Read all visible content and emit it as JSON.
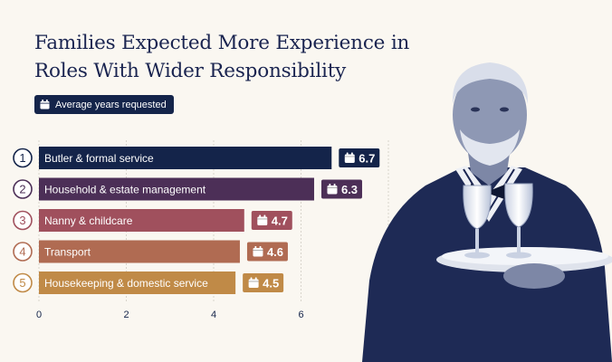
{
  "chart_data": {
    "type": "bar",
    "orientation": "horizontal",
    "title_lines": [
      "Families Expected More Experience in",
      "Roles With Wider Responsibility"
    ],
    "legend": "Average years requested",
    "categories": [
      "Butler & formal service",
      "Household & estate management",
      "Nanny & childcare",
      "Transport",
      "Housekeeping & domestic service"
    ],
    "ranks": [
      "1",
      "2",
      "3",
      "4",
      "5"
    ],
    "values": [
      6.7,
      6.3,
      4.7,
      4.6,
      4.5
    ],
    "value_labels": [
      "6.7",
      "6.3",
      "4.7",
      "4.6",
      "4.5"
    ],
    "bar_colors": [
      "#14244a",
      "#4c2f57",
      "#a0505d",
      "#b06b52",
      "#c08a47"
    ],
    "xlim": [
      0,
      8
    ],
    "xticks": [
      "0",
      "2",
      "4",
      "6",
      "8"
    ],
    "grid": true
  }
}
